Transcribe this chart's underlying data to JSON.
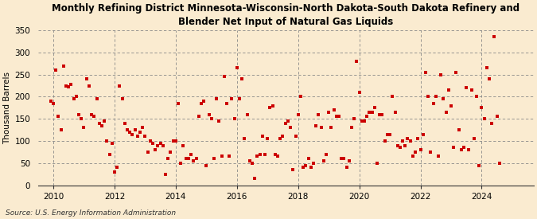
{
  "title_line1": "Monthly Refining District Minnesota-Wisconsin-North Dakota-South Dakota Refinery and",
  "title_line2": "Blender Net Input of Natural Gas Liquids",
  "ylabel": "Thousand Barrels",
  "source": "Source: U.S. Energy Information Administration",
  "background_color": "#faebd0",
  "plot_bg_color": "#faebd0",
  "marker_color": "#cc0000",
  "marker_size": 9,
  "ylim": [
    0,
    350
  ],
  "yticks": [
    0,
    50,
    100,
    150,
    200,
    250,
    300,
    350
  ],
  "xlim_start": 2009.5,
  "xlim_end": 2025.7,
  "xticks": [
    2010,
    2012,
    2014,
    2016,
    2018,
    2020,
    2022,
    2024
  ],
  "data_points": [
    [
      2009.917,
      190
    ],
    [
      2010.0,
      185
    ],
    [
      2010.083,
      260
    ],
    [
      2010.167,
      155
    ],
    [
      2010.25,
      125
    ],
    [
      2010.333,
      270
    ],
    [
      2010.417,
      225
    ],
    [
      2010.5,
      222
    ],
    [
      2010.583,
      228
    ],
    [
      2010.667,
      195
    ],
    [
      2010.75,
      200
    ],
    [
      2010.833,
      160
    ],
    [
      2010.917,
      150
    ],
    [
      2011.0,
      130
    ],
    [
      2011.083,
      240
    ],
    [
      2011.167,
      225
    ],
    [
      2011.25,
      160
    ],
    [
      2011.333,
      155
    ],
    [
      2011.417,
      195
    ],
    [
      2011.5,
      140
    ],
    [
      2011.583,
      135
    ],
    [
      2011.667,
      145
    ],
    [
      2011.75,
      100
    ],
    [
      2011.833,
      70
    ],
    [
      2011.917,
      95
    ],
    [
      2012.0,
      30
    ],
    [
      2012.083,
      40
    ],
    [
      2012.167,
      225
    ],
    [
      2012.25,
      195
    ],
    [
      2012.333,
      140
    ],
    [
      2012.417,
      125
    ],
    [
      2012.5,
      120
    ],
    [
      2012.583,
      115
    ],
    [
      2012.667,
      125
    ],
    [
      2012.75,
      110
    ],
    [
      2012.833,
      120
    ],
    [
      2012.917,
      130
    ],
    [
      2013.0,
      110
    ],
    [
      2013.083,
      75
    ],
    [
      2013.167,
      100
    ],
    [
      2013.25,
      95
    ],
    [
      2013.333,
      80
    ],
    [
      2013.417,
      90
    ],
    [
      2013.5,
      95
    ],
    [
      2013.583,
      90
    ],
    [
      2013.667,
      25
    ],
    [
      2013.75,
      60
    ],
    [
      2013.833,
      75
    ],
    [
      2013.917,
      100
    ],
    [
      2014.0,
      100
    ],
    [
      2014.083,
      185
    ],
    [
      2014.167,
      50
    ],
    [
      2014.25,
      90
    ],
    [
      2014.333,
      60
    ],
    [
      2014.417,
      60
    ],
    [
      2014.5,
      70
    ],
    [
      2014.583,
      55
    ],
    [
      2014.667,
      60
    ],
    [
      2014.75,
      155
    ],
    [
      2014.833,
      185
    ],
    [
      2014.917,
      190
    ],
    [
      2015.0,
      45
    ],
    [
      2015.083,
      160
    ],
    [
      2015.167,
      150
    ],
    [
      2015.25,
      60
    ],
    [
      2015.333,
      195
    ],
    [
      2015.417,
      145
    ],
    [
      2015.5,
      65
    ],
    [
      2015.583,
      245
    ],
    [
      2015.667,
      185
    ],
    [
      2015.75,
      65
    ],
    [
      2015.833,
      195
    ],
    [
      2015.917,
      150
    ],
    [
      2016.0,
      265
    ],
    [
      2016.083,
      195
    ],
    [
      2016.167,
      240
    ],
    [
      2016.25,
      105
    ],
    [
      2016.333,
      160
    ],
    [
      2016.417,
      55
    ],
    [
      2016.5,
      50
    ],
    [
      2016.583,
      15
    ],
    [
      2016.667,
      65
    ],
    [
      2016.75,
      70
    ],
    [
      2016.833,
      110
    ],
    [
      2016.917,
      70
    ],
    [
      2017.0,
      105
    ],
    [
      2017.083,
      175
    ],
    [
      2017.167,
      180
    ],
    [
      2017.25,
      70
    ],
    [
      2017.333,
      65
    ],
    [
      2017.417,
      105
    ],
    [
      2017.5,
      110
    ],
    [
      2017.583,
      140
    ],
    [
      2017.667,
      145
    ],
    [
      2017.75,
      130
    ],
    [
      2017.833,
      35
    ],
    [
      2017.917,
      110
    ],
    [
      2018.0,
      160
    ],
    [
      2018.083,
      200
    ],
    [
      2018.167,
      40
    ],
    [
      2018.25,
      45
    ],
    [
      2018.333,
      60
    ],
    [
      2018.417,
      40
    ],
    [
      2018.5,
      50
    ],
    [
      2018.583,
      135
    ],
    [
      2018.667,
      160
    ],
    [
      2018.75,
      130
    ],
    [
      2018.833,
      55
    ],
    [
      2018.917,
      70
    ],
    [
      2019.0,
      165
    ],
    [
      2019.083,
      130
    ],
    [
      2019.167,
      170
    ],
    [
      2019.25,
      155
    ],
    [
      2019.333,
      155
    ],
    [
      2019.417,
      60
    ],
    [
      2019.5,
      60
    ],
    [
      2019.583,
      40
    ],
    [
      2019.667,
      55
    ],
    [
      2019.75,
      130
    ],
    [
      2019.833,
      150
    ],
    [
      2019.917,
      280
    ],
    [
      2020.0,
      210
    ],
    [
      2020.083,
      145
    ],
    [
      2020.167,
      145
    ],
    [
      2020.25,
      155
    ],
    [
      2020.333,
      165
    ],
    [
      2020.417,
      165
    ],
    [
      2020.5,
      175
    ],
    [
      2020.583,
      50
    ],
    [
      2020.667,
      160
    ],
    [
      2020.75,
      160
    ],
    [
      2020.833,
      100
    ],
    [
      2020.917,
      115
    ],
    [
      2021.0,
      115
    ],
    [
      2021.083,
      200
    ],
    [
      2021.167,
      165
    ],
    [
      2021.25,
      90
    ],
    [
      2021.333,
      85
    ],
    [
      2021.417,
      100
    ],
    [
      2021.5,
      90
    ],
    [
      2021.583,
      105
    ],
    [
      2021.667,
      100
    ],
    [
      2021.75,
      65
    ],
    [
      2021.833,
      75
    ],
    [
      2021.917,
      105
    ],
    [
      2022.0,
      80
    ],
    [
      2022.083,
      115
    ],
    [
      2022.167,
      255
    ],
    [
      2022.25,
      200
    ],
    [
      2022.333,
      75
    ],
    [
      2022.417,
      185
    ],
    [
      2022.5,
      200
    ],
    [
      2022.583,
      65
    ],
    [
      2022.667,
      250
    ],
    [
      2022.75,
      195
    ],
    [
      2022.833,
      165
    ],
    [
      2022.917,
      215
    ],
    [
      2023.0,
      180
    ],
    [
      2023.083,
      85
    ],
    [
      2023.167,
      255
    ],
    [
      2023.25,
      125
    ],
    [
      2023.333,
      80
    ],
    [
      2023.417,
      85
    ],
    [
      2023.5,
      220
    ],
    [
      2023.583,
      80
    ],
    [
      2023.667,
      215
    ],
    [
      2023.75,
      105
    ],
    [
      2023.833,
      200
    ],
    [
      2023.917,
      45
    ],
    [
      2024.0,
      175
    ],
    [
      2024.083,
      150
    ],
    [
      2024.167,
      265
    ],
    [
      2024.25,
      240
    ],
    [
      2024.333,
      140
    ],
    [
      2024.417,
      335
    ],
    [
      2024.5,
      155
    ],
    [
      2024.583,
      50
    ]
  ]
}
